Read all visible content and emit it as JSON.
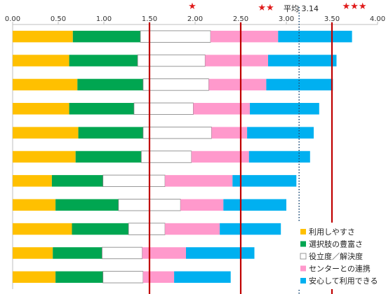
{
  "chart_data": {
    "type": "bar",
    "orientation": "horizontal",
    "stacked": true,
    "xlim": [
      0,
      4.0
    ],
    "x_ticks": [
      "0.00",
      "0.50",
      "1.00",
      "1.50",
      "2.00",
      "2.50",
      "3.00",
      "3.50",
      "4.00"
    ],
    "x_tick_values": [
      0,
      0.5,
      1.0,
      1.5,
      2.0,
      2.5,
      3.0,
      3.5,
      4.0
    ],
    "grid": false,
    "legend_position": "bottom-right",
    "series": [
      {
        "name": "利用しやすさ",
        "color": "#FFC000",
        "values": [
          0.66,
          0.62,
          0.71,
          0.62,
          0.72,
          0.69,
          0.43,
          0.47,
          0.65,
          0.44,
          0.47
        ]
      },
      {
        "name": "選択肢の豊富さ",
        "color": "#00A651",
        "values": [
          0.74,
          0.75,
          0.72,
          0.71,
          0.71,
          0.72,
          0.56,
          0.69,
          0.62,
          0.54,
          0.52
        ]
      },
      {
        "name": "役立度／解決度",
        "color": "#FFFFFF",
        "values": [
          0.77,
          0.74,
          0.72,
          0.65,
          0.75,
          0.55,
          0.68,
          0.68,
          0.4,
          0.44,
          0.44
        ]
      },
      {
        "name": "センターとの連携",
        "color": "#FF99CC",
        "values": [
          0.74,
          0.69,
          0.63,
          0.62,
          0.39,
          0.63,
          0.74,
          0.47,
          0.6,
          0.48,
          0.34
        ]
      },
      {
        "name": "安心して利用できる",
        "color": "#00B0F0",
        "values": [
          0.81,
          0.75,
          0.73,
          0.76,
          0.73,
          0.67,
          0.7,
          0.69,
          0.67,
          0.75,
          0.62
        ]
      }
    ],
    "reference_lines": [
      {
        "value": 1.5,
        "style": "solid",
        "color": "#C00000"
      },
      {
        "value": 2.5,
        "style": "solid",
        "color": "#C00000"
      },
      {
        "value": 3.5,
        "style": "solid",
        "color": "#C00000"
      },
      {
        "value": 3.14,
        "style": "dotted",
        "color": "#1F4E79"
      }
    ],
    "annotations": {
      "average_label": "平均 3.14",
      "star_1": "★",
      "star_2": "★★",
      "star_3": "★★★"
    }
  }
}
